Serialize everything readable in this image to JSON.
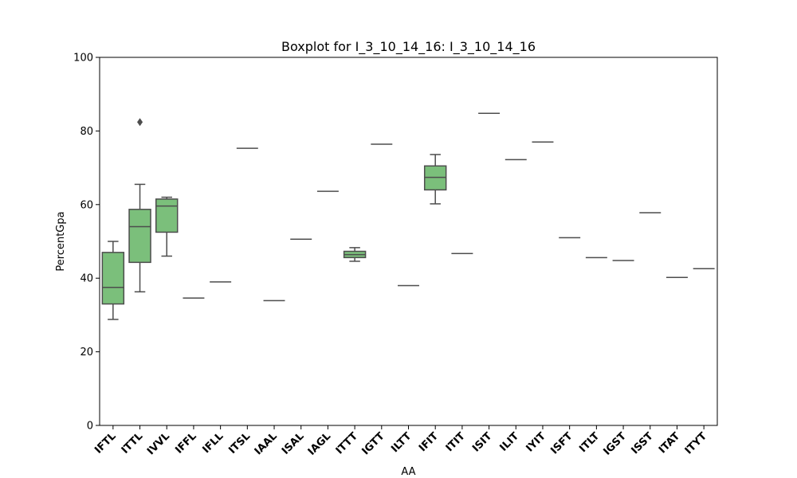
{
  "chart_data": {
    "type": "box",
    "title": "Boxplot for I_3_10_14_16: I_3_10_14_16",
    "xlabel": "AA",
    "ylabel": "PercentGpa",
    "ylim": [
      0,
      100
    ],
    "yticks": [
      0,
      20,
      40,
      60,
      80,
      100
    ],
    "grid": false,
    "legend": "none",
    "box_color": "#7bbf7b",
    "line_color": "#4d4d4d",
    "categories": [
      "IFTL",
      "ITTL",
      "IVVL",
      "IFFL",
      "IFLL",
      "ITSL",
      "IAAL",
      "ISAL",
      "IAGL",
      "ITTT",
      "IGTT",
      "ILTT",
      "IFIT",
      "ITIT",
      "ISIT",
      "ILIT",
      "IYIT",
      "ISFT",
      "ITLT",
      "IGST",
      "ISST",
      "ITAT",
      "ITYT"
    ],
    "boxes": [
      {
        "whislo": 28.8,
        "q1": 33.0,
        "med": 37.5,
        "q3": 47.0,
        "whishi": 50.0,
        "fliers": []
      },
      {
        "whislo": 36.3,
        "q1": 44.3,
        "med": 54.0,
        "q3": 58.7,
        "whishi": 65.5,
        "fliers": [
          82.4
        ]
      },
      {
        "whislo": 46.0,
        "q1": 52.5,
        "med": 59.6,
        "q3": 61.5,
        "whishi": 62.0,
        "fliers": []
      },
      {
        "whislo": 34.6,
        "q1": 34.6,
        "med": 34.6,
        "q3": 34.6,
        "whishi": 34.6,
        "fliers": []
      },
      {
        "whislo": 39.0,
        "q1": 39.0,
        "med": 39.0,
        "q3": 39.0,
        "whishi": 39.0,
        "fliers": []
      },
      {
        "whislo": 75.3,
        "q1": 75.3,
        "med": 75.3,
        "q3": 75.3,
        "whishi": 75.3,
        "fliers": []
      },
      {
        "whislo": 33.9,
        "q1": 33.9,
        "med": 33.9,
        "q3": 33.9,
        "whishi": 33.9,
        "fliers": []
      },
      {
        "whislo": 50.6,
        "q1": 50.6,
        "med": 50.6,
        "q3": 50.6,
        "whishi": 50.6,
        "fliers": []
      },
      {
        "whislo": 63.6,
        "q1": 63.6,
        "med": 63.6,
        "q3": 63.6,
        "whishi": 63.6,
        "fliers": []
      },
      {
        "whislo": 44.6,
        "q1": 45.6,
        "med": 46.4,
        "q3": 47.3,
        "whishi": 48.3,
        "fliers": []
      },
      {
        "whislo": 76.4,
        "q1": 76.4,
        "med": 76.4,
        "q3": 76.4,
        "whishi": 76.4,
        "fliers": []
      },
      {
        "whislo": 38.0,
        "q1": 38.0,
        "med": 38.0,
        "q3": 38.0,
        "whishi": 38.0,
        "fliers": []
      },
      {
        "whislo": 60.2,
        "q1": 64.0,
        "med": 67.4,
        "q3": 70.5,
        "whishi": 73.6,
        "fliers": []
      },
      {
        "whislo": 46.7,
        "q1": 46.7,
        "med": 46.7,
        "q3": 46.7,
        "whishi": 46.7,
        "fliers": []
      },
      {
        "whislo": 84.8,
        "q1": 84.8,
        "med": 84.8,
        "q3": 84.8,
        "whishi": 84.8,
        "fliers": []
      },
      {
        "whislo": 72.2,
        "q1": 72.2,
        "med": 72.2,
        "q3": 72.2,
        "whishi": 72.2,
        "fliers": []
      },
      {
        "whislo": 77.0,
        "q1": 77.0,
        "med": 77.0,
        "q3": 77.0,
        "whishi": 77.0,
        "fliers": []
      },
      {
        "whislo": 51.0,
        "q1": 51.0,
        "med": 51.0,
        "q3": 51.0,
        "whishi": 51.0,
        "fliers": []
      },
      {
        "whislo": 45.6,
        "q1": 45.6,
        "med": 45.6,
        "q3": 45.6,
        "whishi": 45.6,
        "fliers": []
      },
      {
        "whislo": 44.8,
        "q1": 44.8,
        "med": 44.8,
        "q3": 44.8,
        "whishi": 44.8,
        "fliers": []
      },
      {
        "whislo": 57.8,
        "q1": 57.8,
        "med": 57.8,
        "q3": 57.8,
        "whishi": 57.8,
        "fliers": []
      },
      {
        "whislo": 40.2,
        "q1": 40.2,
        "med": 40.2,
        "q3": 40.2,
        "whishi": 40.2,
        "fliers": []
      },
      {
        "whislo": 42.6,
        "q1": 42.6,
        "med": 42.6,
        "q3": 42.6,
        "whishi": 42.6,
        "fliers": []
      }
    ]
  }
}
